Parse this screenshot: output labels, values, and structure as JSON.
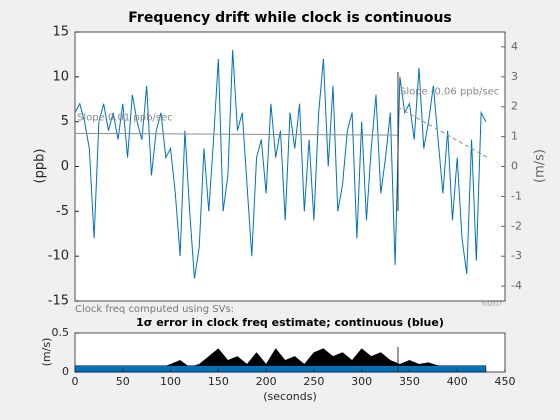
{
  "chart_data": [
    {
      "type": "line",
      "title": "Frequency drift while clock is continuous",
      "ylabel": "(ppb)",
      "y2label": "(m/s)",
      "xlim": [
        0,
        450
      ],
      "ylim": [
        -15,
        15
      ],
      "yticks": [
        -15,
        -10,
        -5,
        0,
        5,
        10,
        15
      ],
      "y2lim": [
        -4.497,
        4.497
      ],
      "y2ticks": [
        -4,
        -3,
        -2,
        -1,
        0,
        1,
        2,
        3,
        4
      ],
      "color": "#0072bd",
      "x": [
        0,
        5,
        10,
        15,
        20,
        25,
        30,
        35,
        40,
        45,
        50,
        55,
        60,
        65,
        70,
        75,
        80,
        85,
        90,
        95,
        100,
        105,
        110,
        115,
        120,
        125,
        130,
        135,
        140,
        145,
        150,
        155,
        160,
        165,
        170,
        175,
        180,
        185,
        190,
        195,
        200,
        205,
        210,
        215,
        220,
        225,
        230,
        235,
        240,
        245,
        250,
        255,
        260,
        265,
        270,
        275,
        280,
        285,
        290,
        295,
        300,
        305,
        310,
        315,
        320,
        325,
        330,
        335,
        340,
        345,
        350,
        355,
        360,
        365,
        370,
        375,
        380,
        385,
        390,
        395,
        400,
        405,
        410,
        415,
        420,
        425,
        430
      ],
      "values": [
        6,
        7,
        5,
        2,
        -8,
        5,
        7,
        4,
        6,
        3,
        7,
        1,
        8,
        5,
        3,
        9,
        -1,
        4,
        6,
        1,
        2,
        -3,
        -10,
        4,
        -5,
        -12.5,
        -9,
        2,
        -5,
        3,
        12,
        -5,
        -1,
        13,
        4,
        6,
        -2,
        -10,
        1,
        3,
        -3,
        7,
        1,
        4,
        -6,
        6,
        2,
        7,
        -5,
        3,
        -6,
        6,
        12,
        0,
        9,
        -5,
        -2,
        4,
        6,
        -8,
        5,
        -6,
        2,
        8,
        -3,
        1,
        6,
        -11,
        10,
        6,
        7,
        3,
        11,
        2,
        5,
        9,
        3,
        -3,
        4,
        -6,
        1,
        -8,
        -12,
        3,
        -10.5,
        6,
        5
      ],
      "fits": [
        {
          "x": [
            0,
            338
          ],
          "values": [
            3.7,
            3.5
          ],
          "color": "#8c8c8c",
          "dashed": false,
          "label": "Slope 0.01 ppb/sec"
        },
        {
          "x": [
            338,
            432
          ],
          "values": [
            6.6,
            1.0
          ],
          "color": "#8c8c8c",
          "dashed": true,
          "label": "Slope -0.06 ppb/sec"
        }
      ],
      "vline": 338,
      "annotations": [
        "Clock freq computed using SVs:",
        "fcd2017"
      ]
    },
    {
      "type": "area",
      "title": "1σ error in clock freq estimate; continuous (blue)",
      "ylabel": "(m/s)",
      "xlabel": "(seconds)",
      "xlim": [
        0,
        450
      ],
      "xticks": [
        0,
        50,
        100,
        150,
        200,
        250,
        300,
        350,
        400,
        450
      ],
      "ylim": [
        0,
        0.5
      ],
      "yticks": [
        0,
        0.5
      ],
      "vline": 338,
      "areas": [
        {
          "color": "#000000",
          "x": [
            0,
            10,
            20,
            30,
            40,
            50,
            60,
            70,
            80,
            90,
            100,
            110,
            120,
            130,
            140,
            150,
            160,
            170,
            180,
            190,
            200,
            210,
            220,
            230,
            240,
            250,
            260,
            270,
            280,
            290,
            300,
            310,
            320,
            330,
            340,
            350,
            360,
            370,
            380,
            390,
            400,
            410,
            420,
            430
          ],
          "values": [
            0.05,
            0.05,
            0.05,
            0.05,
            0.05,
            0.05,
            0.05,
            0.05,
            0.05,
            0.05,
            0.1,
            0.15,
            0.06,
            0.1,
            0.2,
            0.3,
            0.15,
            0.2,
            0.1,
            0.25,
            0.1,
            0.3,
            0.15,
            0.2,
            0.1,
            0.25,
            0.3,
            0.2,
            0.25,
            0.15,
            0.3,
            0.2,
            0.25,
            0.15,
            0.1,
            0.15,
            0.1,
            0.12,
            0.08,
            0.05,
            0.05,
            0.05,
            0.05,
            0.05
          ]
        },
        {
          "color": "#0072bd",
          "x": [
            0,
            430
          ],
          "values": [
            0.08,
            0.08
          ]
        }
      ]
    }
  ]
}
